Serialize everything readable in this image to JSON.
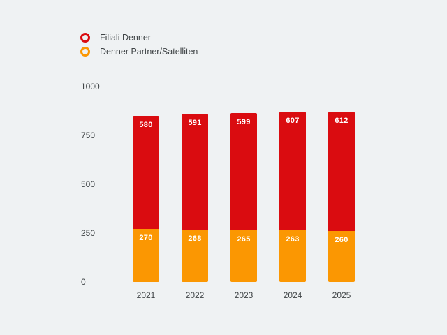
{
  "colors": {
    "background": "#eff2f3",
    "text": "#3f4446",
    "value_label": "#ffffff",
    "red": "#da0c10",
    "orange": "#fb9702"
  },
  "legend": {
    "items": [
      {
        "label": "Filiali Denner",
        "color": "#da0c10"
      },
      {
        "label": "Denner Partner/Satelliten",
        "color": "#fb9702"
      }
    ]
  },
  "chart_data": {
    "type": "bar",
    "stacked": true,
    "categories": [
      "2021",
      "2022",
      "2023",
      "2024",
      "2025"
    ],
    "series": [
      {
        "name": "Filiali Denner",
        "color": "#da0c10",
        "values": [
          580,
          591,
          599,
          607,
          612
        ]
      },
      {
        "name": "Denner Partner/Satelliten",
        "color": "#fb9702",
        "values": [
          270,
          268,
          265,
          263,
          260
        ]
      }
    ],
    "yticks": [
      0,
      250,
      500,
      750,
      1000
    ],
    "ylim": [
      0,
      1000
    ],
    "grid": false,
    "axis_lines": false,
    "legend_position": "top-left",
    "value_labels": true
  }
}
